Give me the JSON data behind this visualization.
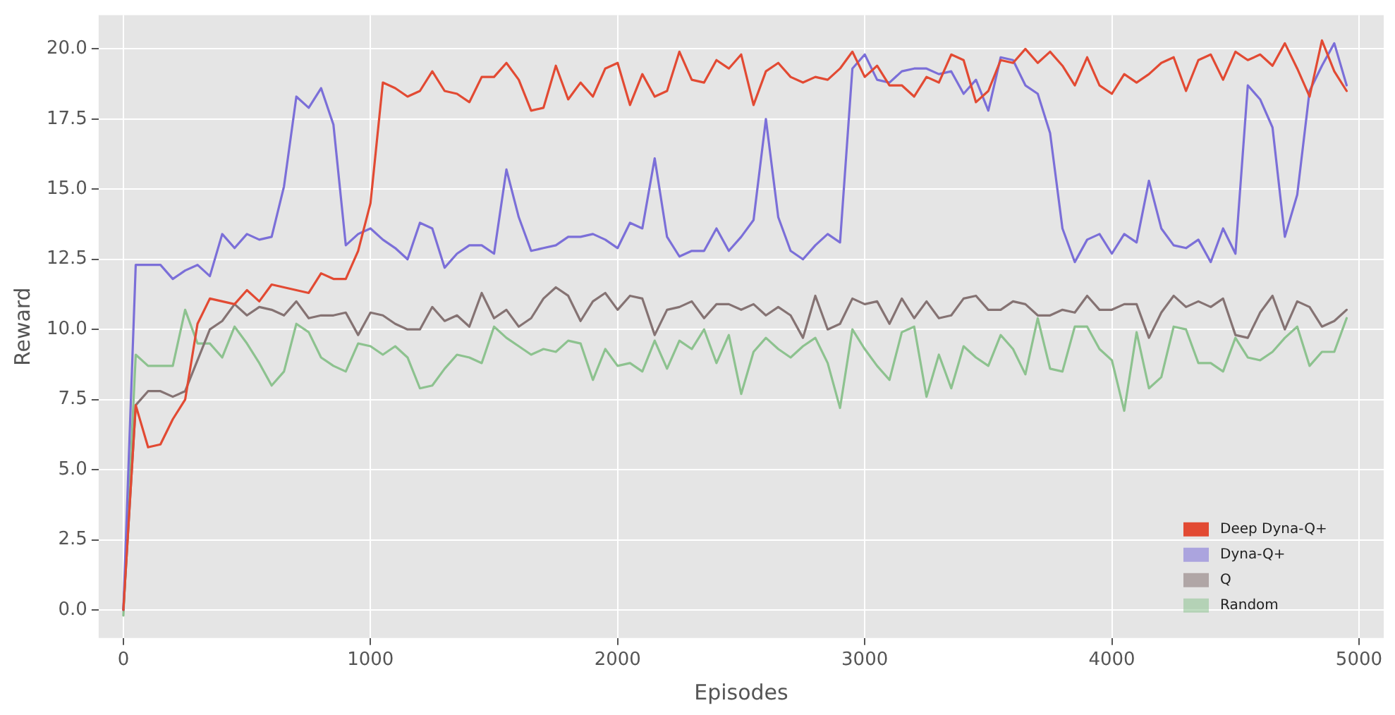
{
  "chart_data": {
    "type": "line",
    "xlabel": "Episodes",
    "ylabel": "Reward",
    "xlim": [
      -100,
      5100
    ],
    "xticks": [
      0,
      1000,
      2000,
      3000,
      4000,
      5000
    ],
    "ylim": [
      -1,
      21.2
    ],
    "yticks": [
      {
        "value": 0,
        "label": "0.0"
      },
      {
        "value": 2.5,
        "label": "2.5"
      },
      {
        "value": 5,
        "label": "5.0"
      },
      {
        "value": 7.5,
        "label": "7.5"
      },
      {
        "value": 10,
        "label": "10.0"
      },
      {
        "value": 12.5,
        "label": "12.5"
      },
      {
        "value": 15,
        "label": "15.0"
      },
      {
        "value": 17.5,
        "label": "17.5"
      },
      {
        "value": 20,
        "label": "20.0"
      }
    ],
    "grid": true,
    "legend": "bottom right",
    "marker": "none",
    "line_style": "solid",
    "x": [
      0,
      50,
      100,
      150,
      200,
      250,
      300,
      350,
      400,
      450,
      500,
      550,
      600,
      650,
      700,
      750,
      800,
      850,
      900,
      950,
      1000,
      1050,
      1100,
      1150,
      1200,
      1250,
      1300,
      1350,
      1400,
      1450,
      1500,
      1550,
      1600,
      1650,
      1700,
      1750,
      1800,
      1850,
      1900,
      1950,
      2000,
      2050,
      2100,
      2150,
      2200,
      2250,
      2300,
      2350,
      2400,
      2450,
      2500,
      2550,
      2600,
      2650,
      2700,
      2750,
      2800,
      2850,
      2900,
      2950,
      3000,
      3050,
      3100,
      3150,
      3200,
      3250,
      3300,
      3350,
      3400,
      3450,
      3500,
      3550,
      3600,
      3650,
      3700,
      3750,
      3800,
      3850,
      3900,
      3950,
      4000,
      4050,
      4100,
      4150,
      4200,
      4250,
      4300,
      4350,
      4400,
      4450,
      4500,
      4550,
      4600,
      4650,
      4700,
      4750,
      4800,
      4850,
      4900,
      4950
    ],
    "series": [
      {
        "name": "Deep Dyna-Q+",
        "color": "#e24a33",
        "values": [
          0,
          7.3,
          5.8,
          5.9,
          6.8,
          7.5,
          10.2,
          11.1,
          11.0,
          10.9,
          11.4,
          11.0,
          11.6,
          11.5,
          11.4,
          11.3,
          12.0,
          11.8,
          11.8,
          12.8,
          14.5,
          18.8,
          18.6,
          18.3,
          18.5,
          19.2,
          18.5,
          18.4,
          18.1,
          19.0,
          19.0,
          19.5,
          18.9,
          17.8,
          17.9,
          19.4,
          18.2,
          18.8,
          18.3,
          19.3,
          19.5,
          18.0,
          19.1,
          18.3,
          18.5,
          19.9,
          18.9,
          18.8,
          19.6,
          19.3,
          19.8,
          18.0,
          19.2,
          19.5,
          19.0,
          18.8,
          19.0,
          18.9,
          19.3,
          19.9,
          19.0,
          19.4,
          18.7,
          18.7,
          18.3,
          19.0,
          18.8,
          19.8,
          19.6,
          18.1,
          18.5,
          19.6,
          19.5,
          20.0,
          19.5,
          19.9,
          19.4,
          18.7,
          19.7,
          18.7,
          18.4,
          19.1,
          18.8,
          19.1,
          19.5,
          19.7,
          18.5,
          19.6,
          19.8,
          18.9,
          19.9,
          19.6,
          19.8,
          19.4,
          20.2,
          19.3,
          18.3,
          20.3,
          19.2,
          18.5
        ]
      },
      {
        "name": "Dyna-Q+",
        "color": "#7b6fd8",
        "values": [
          0,
          12.3,
          12.3,
          12.3,
          11.8,
          12.1,
          12.3,
          11.9,
          13.4,
          12.9,
          13.4,
          13.2,
          13.3,
          15.1,
          18.3,
          17.9,
          18.6,
          17.3,
          13.0,
          13.4,
          13.6,
          13.2,
          12.9,
          12.5,
          13.8,
          13.6,
          12.2,
          12.7,
          13.0,
          13.0,
          12.7,
          15.7,
          14.0,
          12.8,
          12.9,
          13.0,
          13.3,
          13.3,
          13.4,
          13.2,
          12.9,
          13.8,
          13.6,
          16.1,
          13.3,
          12.6,
          12.8,
          12.8,
          13.6,
          12.8,
          13.3,
          13.9,
          17.5,
          14.0,
          12.8,
          12.5,
          13.0,
          13.4,
          13.1,
          19.3,
          19.8,
          18.9,
          18.8,
          19.2,
          19.3,
          19.3,
          19.1,
          19.2,
          18.4,
          18.9,
          17.8,
          19.7,
          19.6,
          18.7,
          18.4,
          17.0,
          13.6,
          12.4,
          13.2,
          13.4,
          12.7,
          13.4,
          13.1,
          15.3,
          13.6,
          13.0,
          12.9,
          13.2,
          12.4,
          13.6,
          12.7,
          18.7,
          18.2,
          17.2,
          13.3,
          14.8,
          18.5,
          19.4,
          20.2,
          18.7
        ]
      },
      {
        "name": "Q",
        "color": "#857373",
        "values": [
          0,
          7.3,
          7.8,
          7.8,
          7.6,
          7.8,
          8.9,
          10.0,
          10.3,
          10.9,
          10.5,
          10.8,
          10.7,
          10.5,
          11.0,
          10.4,
          10.5,
          10.5,
          10.6,
          9.8,
          10.6,
          10.5,
          10.2,
          10.0,
          10.0,
          10.8,
          10.3,
          10.5,
          10.1,
          11.3,
          10.4,
          10.7,
          10.1,
          10.4,
          11.1,
          11.5,
          11.2,
          10.3,
          11.0,
          11.3,
          10.7,
          11.2,
          11.1,
          9.8,
          10.7,
          10.8,
          11.0,
          10.4,
          10.9,
          10.9,
          10.7,
          10.9,
          10.5,
          10.8,
          10.5,
          9.7,
          11.2,
          10.0,
          10.2,
          11.1,
          10.9,
          11.0,
          10.2,
          11.1,
          10.4,
          11.0,
          10.4,
          10.5,
          11.1,
          11.2,
          10.7,
          10.7,
          11.0,
          10.9,
          10.5,
          10.5,
          10.7,
          10.6,
          11.2,
          10.7,
          10.7,
          10.9,
          10.9,
          9.7,
          10.6,
          11.2,
          10.8,
          11.0,
          10.8,
          11.1,
          9.8,
          9.7,
          10.6,
          11.2,
          10.0,
          11.0,
          10.8,
          10.1,
          10.3,
          10.7
        ]
      },
      {
        "name": "Random",
        "color": "#8dc28f",
        "values": [
          -0.2,
          9.1,
          8.7,
          8.7,
          8.7,
          10.7,
          9.5,
          9.5,
          9.0,
          10.1,
          9.5,
          8.8,
          8.0,
          8.5,
          10.2,
          9.9,
          9.0,
          8.7,
          8.5,
          9.5,
          9.4,
          9.1,
          9.4,
          9.0,
          7.9,
          8.0,
          8.6,
          9.1,
          9.0,
          8.8,
          10.1,
          9.7,
          9.4,
          9.1,
          9.3,
          9.2,
          9.6,
          9.5,
          8.2,
          9.3,
          8.7,
          8.8,
          8.5,
          9.6,
          8.6,
          9.6,
          9.3,
          10.0,
          8.8,
          9.8,
          7.7,
          9.2,
          9.7,
          9.3,
          9.0,
          9.4,
          9.7,
          8.8,
          7.2,
          10.0,
          9.3,
          8.7,
          8.2,
          9.9,
          10.1,
          7.6,
          9.1,
          7.9,
          9.4,
          9.0,
          8.7,
          9.8,
          9.3,
          8.4,
          10.4,
          8.6,
          8.5,
          10.1,
          10.1,
          9.3,
          8.9,
          7.1,
          9.9,
          7.9,
          8.3,
          10.1,
          10.0,
          8.8,
          8.8,
          8.5,
          9.7,
          9.0,
          8.9,
          9.2,
          9.7,
          10.1,
          8.7,
          9.2,
          9.2,
          10.4
        ]
      }
    ]
  }
}
